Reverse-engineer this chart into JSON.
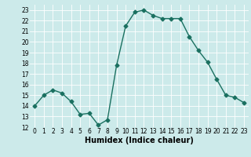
{
  "x": [
    0,
    1,
    2,
    3,
    4,
    5,
    6,
    7,
    8,
    9,
    10,
    11,
    12,
    13,
    14,
    15,
    16,
    17,
    18,
    19,
    20,
    21,
    22,
    23
  ],
  "y": [
    14,
    15,
    15.5,
    15.2,
    14.4,
    13.2,
    13.3,
    12.2,
    12.7,
    17.8,
    21.5,
    22.8,
    23.0,
    22.5,
    22.2,
    22.2,
    22.2,
    20.5,
    19.2,
    18.1,
    16.5,
    15.0,
    14.8,
    14.3
  ],
  "line_color": "#1a7060",
  "marker": "D",
  "markersize": 2.5,
  "linewidth": 1.0,
  "xlabel": "Humidex (Indice chaleur)",
  "xlim": [
    -0.5,
    23.5
  ],
  "ylim": [
    12,
    23.5
  ],
  "yticks": [
    12,
    13,
    14,
    15,
    16,
    17,
    18,
    19,
    20,
    21,
    22,
    23
  ],
  "xticks": [
    0,
    1,
    2,
    3,
    4,
    5,
    6,
    7,
    8,
    9,
    10,
    11,
    12,
    13,
    14,
    15,
    16,
    17,
    18,
    19,
    20,
    21,
    22,
    23
  ],
  "bg_color": "#cceaea",
  "grid_color": "#ffffff",
  "tick_fontsize": 5.5,
  "xlabel_fontsize": 7.0
}
